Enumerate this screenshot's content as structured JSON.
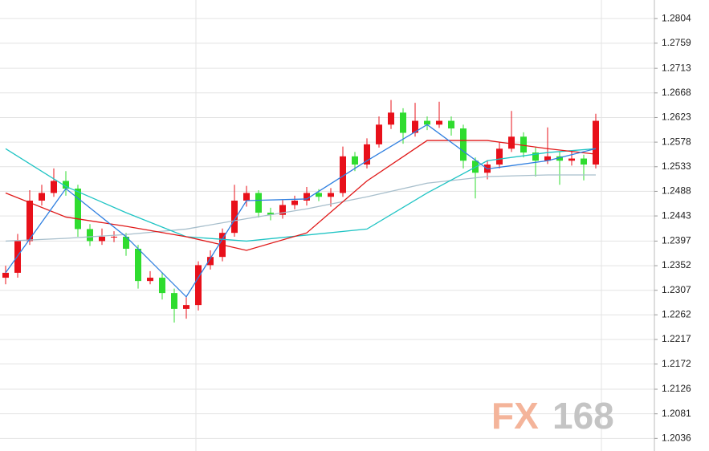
{
  "chart_data": {
    "type": "candlestick",
    "watermark": [
      "FX",
      "168"
    ],
    "ylim": [
      1.2013,
      1.2838
    ],
    "yticks": [
      1.2804,
      1.2759,
      1.2713,
      1.2668,
      1.2623,
      1.2578,
      1.2533,
      1.2488,
      1.2443,
      1.2397,
      1.2352,
      1.2307,
      1.2262,
      1.2217,
      1.2172,
      1.2126,
      1.2081,
      1.2036
    ],
    "grid": true,
    "up_color": "#e8101a",
    "down_color": "#2fdc2f",
    "open": [
      1.233,
      1.2339,
      1.2397,
      1.2471,
      1.2485,
      1.2507,
      1.2493,
      1.2419,
      1.2397,
      1.2405,
      1.2405,
      1.2383,
      1.2324,
      1.233,
      1.2302,
      1.2273,
      1.228,
      1.2353,
      1.2368,
      1.2412,
      1.2471,
      1.2485,
      1.2449,
      1.2445,
      1.2463,
      1.2471,
      1.2485,
      1.2478,
      1.2485,
      1.2552,
      1.2537,
      1.2574,
      1.261,
      1.2632,
      1.2595,
      1.2617,
      1.261,
      1.2617,
      1.2603,
      1.2544,
      1.2522,
      1.2537,
      1.2566,
      1.2588,
      1.2559,
      1.2544,
      1.2552,
      1.2544,
      1.2548,
      1.2537
    ],
    "high": [
      1.2352,
      1.241,
      1.249,
      1.25,
      1.253,
      1.2525,
      1.25,
      1.2428,
      1.242,
      1.2415,
      1.2412,
      1.239,
      1.2342,
      1.234,
      1.231,
      1.2295,
      1.236,
      1.238,
      1.242,
      1.25,
      1.2498,
      1.249,
      1.2458,
      1.2472,
      1.248,
      1.2496,
      1.2492,
      1.2494,
      1.257,
      1.256,
      1.2585,
      1.2625,
      1.2655,
      1.264,
      1.265,
      1.2625,
      1.2652,
      1.2625,
      1.261,
      1.255,
      1.2545,
      1.2578,
      1.2635,
      1.2596,
      1.2568,
      1.2605,
      1.256,
      1.2562,
      1.2555,
      1.263
    ],
    "low": [
      1.2318,
      1.233,
      1.239,
      1.2462,
      1.2478,
      1.248,
      1.2405,
      1.2388,
      1.239,
      1.2395,
      1.237,
      1.231,
      1.2318,
      1.229,
      1.2248,
      1.2255,
      1.227,
      1.2345,
      1.236,
      1.2405,
      1.246,
      1.244,
      1.2435,
      1.2438,
      1.2455,
      1.2462,
      1.247,
      1.246,
      1.2478,
      1.2525,
      1.253,
      1.2568,
      1.2602,
      1.2575,
      1.2588,
      1.26,
      1.2604,
      1.259,
      1.253,
      1.2475,
      1.251,
      1.253,
      1.256,
      1.255,
      1.2515,
      1.2538,
      1.25,
      1.2535,
      1.2508,
      1.253
    ],
    "close": [
      1.2339,
      1.2397,
      1.2471,
      1.2485,
      1.2507,
      1.2493,
      1.2419,
      1.2397,
      1.2405,
      1.2405,
      1.2383,
      1.2324,
      1.233,
      1.2302,
      1.2273,
      1.228,
      1.2353,
      1.2368,
      1.2412,
      1.2471,
      1.2485,
      1.2449,
      1.2445,
      1.2463,
      1.2471,
      1.2485,
      1.2478,
      1.2485,
      1.2552,
      1.2537,
      1.2574,
      1.261,
      1.2632,
      1.2595,
      1.2617,
      1.261,
      1.2617,
      1.2603,
      1.2544,
      1.2522,
      1.2537,
      1.2566,
      1.2588,
      1.2559,
      1.2544,
      1.2552,
      1.2544,
      1.2548,
      1.2537,
      1.2617
    ],
    "lines": [
      {
        "color": "#a8bfcc",
        "x": [
          0,
          5,
          10,
          15,
          20,
          25,
          30,
          35,
          40,
          45,
          49
        ],
        "values": [
          1.2397,
          1.2402,
          1.2409,
          1.2419,
          1.2438,
          1.2456,
          1.2478,
          1.2503,
          1.2515,
          1.2518,
          1.2518
        ]
      },
      {
        "color": "#1fc4c4",
        "x": [
          0,
          5,
          10,
          15,
          20,
          25,
          30,
          35,
          40,
          45,
          49
        ],
        "values": [
          1.2566,
          1.2497,
          1.2449,
          1.2405,
          1.2397,
          1.2408,
          1.2419,
          1.2485,
          1.2544,
          1.2559,
          1.2566
        ]
      },
      {
        "color": "#e01818",
        "x": [
          0,
          5,
          10,
          15,
          20,
          25,
          30,
          35,
          40,
          45,
          49
        ],
        "values": [
          1.2485,
          1.2441,
          1.2424,
          1.2405,
          1.238,
          1.2412,
          1.2507,
          1.2581,
          1.2581,
          1.2566,
          1.2556
        ]
      },
      {
        "color": "#2f7fe0",
        "x": [
          0,
          5,
          10,
          15,
          20,
          25,
          30,
          35,
          40,
          45,
          49
        ],
        "values": [
          1.2339,
          1.2493,
          1.2405,
          1.2295,
          1.2471,
          1.2474,
          1.2544,
          1.261,
          1.2529,
          1.2544,
          1.2566
        ]
      }
    ]
  }
}
